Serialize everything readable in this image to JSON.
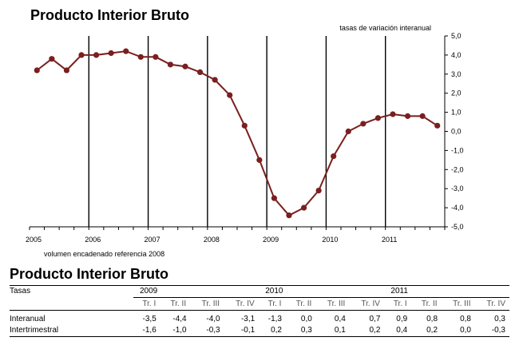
{
  "chart_data": {
    "type": "line",
    "title": "Producto Interior Bruto",
    "ylabel": "tasas de variación interanual",
    "xlabel_note": "volumen encadenado referencia 2008",
    "ylim": [
      -5.0,
      5.0
    ],
    "y_ticks": [
      "5,0",
      "4,0",
      "3,0",
      "2,0",
      "1,0",
      "0,0",
      "-1,0",
      "-2,0",
      "-3,0",
      "-4,0",
      "-5,0"
    ],
    "x_tick_labels": [
      "2005",
      "2006",
      "2007",
      "2008",
      "2009",
      "2010",
      "2011"
    ],
    "grid": "vertical lines at year boundaries",
    "series": [
      {
        "color": "#7a1f1f",
        "x": [
          "2005-I",
          "2005-II",
          "2005-III",
          "2005-IV",
          "2006-I",
          "2006-II",
          "2006-III",
          "2006-IV",
          "2007-I",
          "2007-II",
          "2007-III",
          "2007-IV",
          "2008-I",
          "2008-II",
          "2008-III",
          "2008-IV",
          "2009-I",
          "2009-II",
          "2009-III",
          "2009-IV",
          "2010-I",
          "2010-II",
          "2010-III",
          "2010-IV",
          "2011-I",
          "2011-II",
          "2011-III",
          "2011-IV"
        ],
        "values": [
          3.2,
          3.8,
          3.2,
          4.0,
          4.0,
          4.1,
          4.2,
          3.9,
          3.9,
          3.5,
          3.4,
          3.1,
          2.7,
          1.9,
          0.3,
          -1.5,
          -3.5,
          -4.4,
          -4.0,
          -3.1,
          -1.3,
          0.0,
          0.4,
          0.7,
          0.9,
          0.8,
          0.8,
          0.3
        ]
      }
    ]
  },
  "table": {
    "title": "Producto Interior Bruto",
    "rowhead": "Tasas",
    "years": [
      "2009",
      "2010",
      "2011"
    ],
    "quarters": [
      "Tr. I",
      "Tr. II",
      "Tr. III",
      "Tr. IV",
      "Tr. I",
      "Tr. II",
      "Tr. III",
      "Tr. IV",
      "Tr. I",
      "Tr. II",
      "Tr. III",
      "Tr. IV"
    ],
    "rows": [
      {
        "label": "Interanual",
        "values": [
          "-3,5",
          "-4,4",
          "-4,0",
          "-3,1",
          "-1,3",
          "0,0",
          "0,4",
          "0,7",
          "0,9",
          "0,8",
          "0,8",
          "0,3"
        ]
      },
      {
        "label": "Intertrimestral",
        "values": [
          "-1,6",
          "-1,0",
          "-0,3",
          "-0,1",
          "0,2",
          "0,3",
          "0,1",
          "0,2",
          "0,4",
          "0,2",
          "0,0",
          "-0,3"
        ]
      }
    ]
  }
}
